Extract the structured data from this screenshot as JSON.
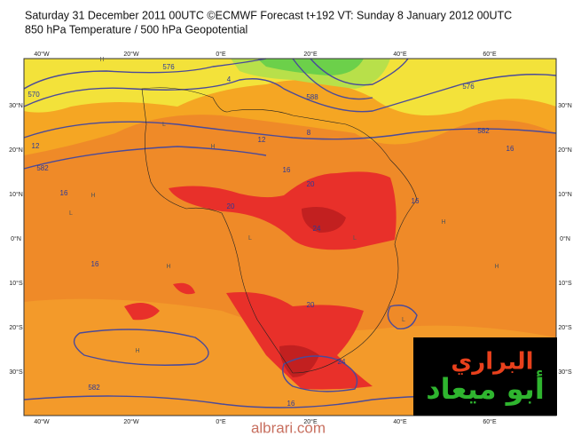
{
  "header": {
    "title": "Saturday 31 December 2011 00UTC ©ECMWF Forecast t+192 VT: Sunday 8 January 2012 00UTC",
    "subtitle": "850 hPa Temperature / 500 hPa Geopotential"
  },
  "map": {
    "longitude_labels": [
      "40°W",
      "20°W",
      "0°E",
      "20°E",
      "40°E",
      "60°E"
    ],
    "latitude_labels": [
      "30°N",
      "20°N",
      "10°N",
      "0°N",
      "10°S",
      "20°S",
      "30°S"
    ],
    "contour_labels": [
      "570",
      "576",
      "582",
      "4",
      "8",
      "576",
      "582",
      "12",
      "12",
      "16",
      "16",
      "16",
      "20",
      "20",
      "24",
      "16",
      "16",
      "20",
      "24",
      "582",
      "16",
      "588"
    ],
    "pressure_centers": [
      "H",
      "H",
      "H",
      "L",
      "L",
      "L",
      "H",
      "H",
      "L",
      "H",
      "L",
      "H"
    ]
  },
  "watermark": {
    "line1": "البراري",
    "line2": "أبو ميعاد",
    "site": "albrari.com"
  }
}
